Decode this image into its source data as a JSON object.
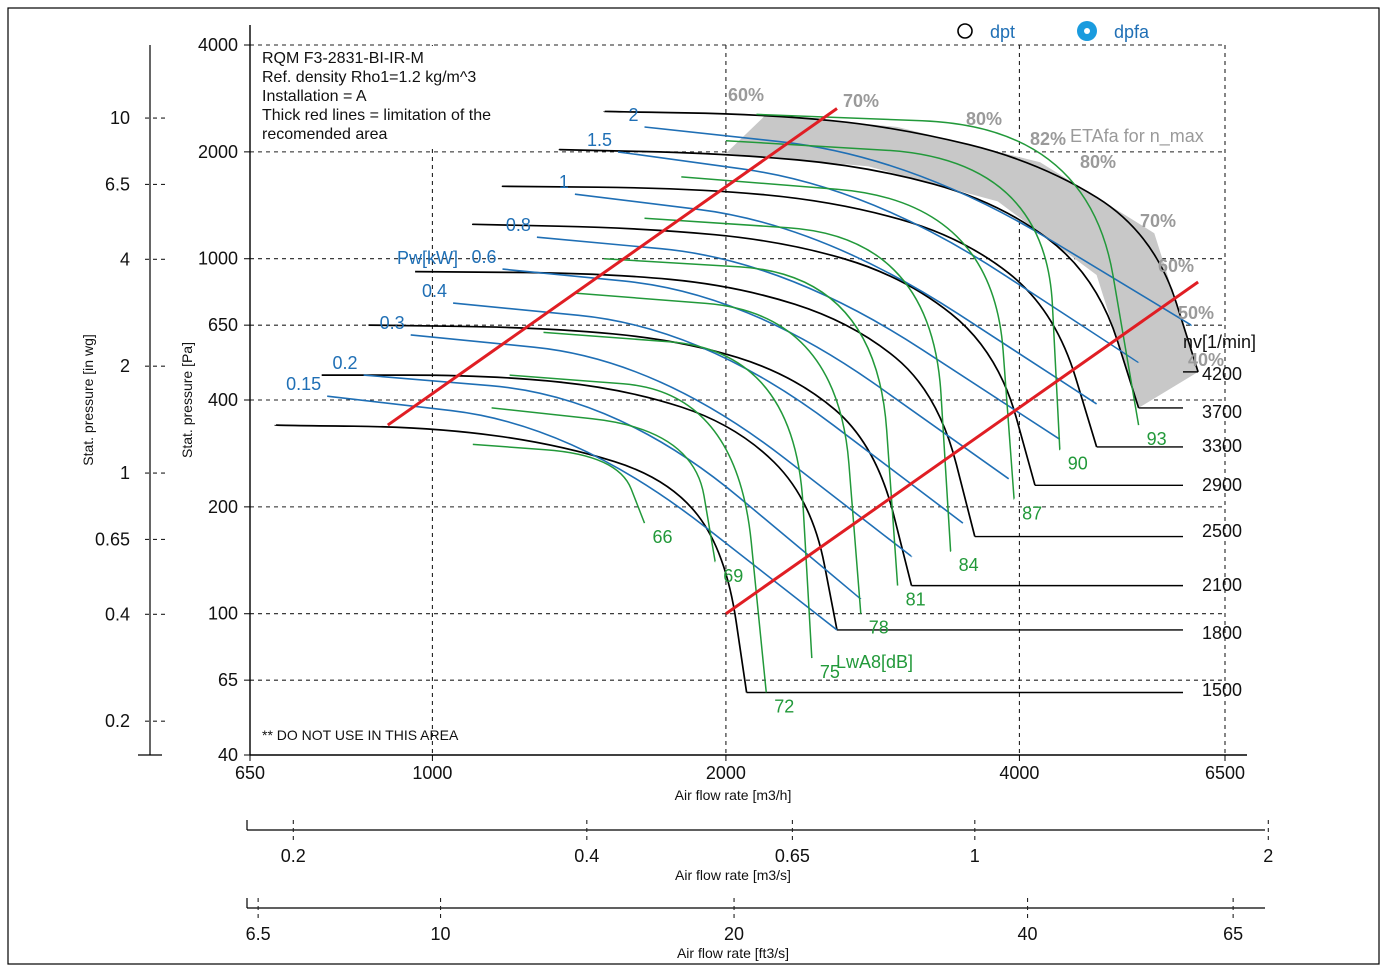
{
  "header": {
    "legend": [
      {
        "label": "dpt",
        "marker": "open-circle",
        "color": "#000000"
      },
      {
        "label": "dpfa",
        "marker": "filled-dot",
        "color": "#1a9bde"
      }
    ]
  },
  "notes": {
    "model": "RQM F3-2831-BI-IR-M",
    "density": "Ref. density Rho1=1.2 kg/m^3",
    "installation": "Installation = A",
    "red_lines_1": "Thick red lines = limitation of the",
    "red_lines_2": "recomended area",
    "no_use": "** DO NOT USE IN THIS AREA"
  },
  "chart_data": {
    "type": "line",
    "title": "",
    "x_axes": [
      {
        "label": "Air flow rate [m3/h]",
        "scale": "log",
        "range": [
          650,
          6500
        ],
        "ticks": [
          "650",
          "1000",
          "2000",
          "4000",
          "6500"
        ]
      },
      {
        "label": "Air flow rate [m3/s]",
        "scale": "log",
        "ticks": [
          "0.2",
          "0.4",
          "0.65",
          "1",
          "2"
        ]
      },
      {
        "label": "Air flow rate [ft3/s]",
        "scale": "log",
        "ticks": [
          "6.5",
          "10",
          "20",
          "40",
          "65"
        ]
      }
    ],
    "y_axes": [
      {
        "label": "Stat. pressure [Pa]",
        "scale": "log",
        "range": [
          40,
          4000
        ],
        "ticks": [
          "4000",
          "2000",
          "1000",
          "650",
          "400",
          "200",
          "100",
          "65",
          "40"
        ]
      },
      {
        "label": "Stat. pressure [in wg]",
        "scale": "log",
        "ticks": [
          "10",
          "6.5",
          "4",
          "2",
          "1",
          "0.65",
          "0.4",
          "0.2"
        ]
      }
    ],
    "speed_title": "nv[1/min]",
    "speed_series": [
      {
        "name": "4200",
        "x": [
          6100,
          5500,
          4200,
          3000,
          2200,
          1500
        ],
        "y": [
          480,
          1180,
          1870,
          2350,
          2550,
          2600
        ]
      },
      {
        "name": "3700",
        "x": [
          5300,
          4800,
          3800,
          2800,
          2000,
          1350
        ],
        "y": [
          380,
          900,
          1450,
          1820,
          1980,
          2030
        ]
      },
      {
        "name": "3300",
        "x": [
          4800,
          4350,
          3500,
          2600,
          1850,
          1180
        ],
        "y": [
          295,
          720,
          1150,
          1450,
          1580,
          1600
        ]
      },
      {
        "name": "2900",
        "x": [
          4150,
          3800,
          3050,
          2300,
          1650,
          1100
        ],
        "y": [
          230,
          550,
          890,
          1120,
          1220,
          1250
        ]
      },
      {
        "name": "2500",
        "x": [
          3600,
          3300,
          2700,
          2050,
          1500,
          960
        ],
        "y": [
          165,
          420,
          660,
          840,
          910,
          920
        ]
      },
      {
        "name": "2100",
        "x": [
          3100,
          2850,
          2350,
          1800,
          1300,
          860
        ],
        "y": [
          120,
          300,
          470,
          590,
          640,
          650
        ]
      },
      {
        "name": "1800",
        "x": [
          2600,
          2450,
          2050,
          1580,
          1150,
          770
        ],
        "y": [
          90,
          210,
          340,
          430,
          470,
          470
        ]
      },
      {
        "name": "1500",
        "x": [
          2100,
          2000,
          1750,
          1350,
          1000,
          690
        ],
        "y": [
          60,
          150,
          240,
          300,
          335,
          340
        ]
      }
    ],
    "red_limit_lines": [
      {
        "x": [
          900,
          2600
        ],
        "y": [
          340,
          2650
        ]
      },
      {
        "x": [
          2000,
          6100
        ],
        "y": [
          100,
          860
        ]
      }
    ],
    "shaded_region_corners": {
      "x": [
        2200,
        4150,
        6100,
        5300,
        4800,
        3000,
        1700
      ],
      "y": [
        2600,
        2050,
        480,
        330,
        1400,
        2200,
        2050
      ]
    },
    "power_lines_label": "Pw[kW]",
    "power_lines": [
      {
        "name": "2",
        "x": [
          1650,
          3100,
          6000
        ],
        "y": [
          2350,
          1950,
          650
        ]
      },
      {
        "name": "1.5",
        "x": [
          1550,
          2800,
          5300
        ],
        "y": [
          2000,
          1600,
          510
        ]
      },
      {
        "name": "1",
        "x": [
          1400,
          2500,
          4800
        ],
        "y": [
          1520,
          1250,
          390
        ]
      },
      {
        "name": "0.8",
        "x": [
          1280,
          2300,
          4400
        ],
        "y": [
          1150,
          990,
          310
        ]
      },
      {
        "name": "0.6",
        "x": [
          1180,
          2100,
          3900
        ],
        "y": [
          935,
          800,
          240
        ]
      },
      {
        "name": "0.4",
        "x": [
          1050,
          1900,
          3500
        ],
        "y": [
          750,
          640,
          180
        ]
      },
      {
        "name": "0.3",
        "x": [
          950,
          1700,
          3100
        ],
        "y": [
          610,
          520,
          145
        ]
      },
      {
        "name": "0.2",
        "x": [
          850,
          1550,
          2750
        ],
        "y": [
          470,
          410,
          110
        ]
      },
      {
        "name": "0.15",
        "x": [
          780,
          1400,
          2600
        ],
        "y": [
          410,
          340,
          90
        ]
      }
    ],
    "noise_lines_label": "LwA8[dB]",
    "noise_lines": [
      {
        "name": "66",
        "x": [
          1100,
          1550,
          1650
        ],
        "y": [
          300,
          280,
          180
        ]
      },
      {
        "name": "69",
        "x": [
          1150,
          1850,
          1950
        ],
        "y": [
          380,
          330,
          140
        ]
      },
      {
        "name": "72",
        "x": [
          1200,
          2050,
          2200
        ],
        "y": [
          470,
          420,
          60
        ]
      },
      {
        "name": "75",
        "x": [
          1300,
          2350,
          2450
        ],
        "y": [
          620,
          550,
          75
        ]
      },
      {
        "name": "78",
        "x": [
          1400,
          2600,
          2750
        ],
        "y": [
          800,
          700,
          100
        ]
      },
      {
        "name": "81",
        "x": [
          1500,
          2850,
          3000
        ],
        "y": [
          1000,
          900,
          120
        ]
      },
      {
        "name": "84",
        "x": [
          1650,
          3250,
          3400
        ],
        "y": [
          1300,
          1150,
          150
        ]
      },
      {
        "name": "87",
        "x": [
          1800,
          3750,
          3950
        ],
        "y": [
          1700,
          1450,
          210
        ]
      },
      {
        "name": "90",
        "x": [
          2000,
          4250,
          4400
        ],
        "y": [
          2150,
          1900,
          290
        ]
      },
      {
        "name": "93",
        "x": [
          2150,
          4700,
          5300
        ],
        "y": [
          2550,
          2350,
          340
        ]
      }
    ],
    "efficiency_labels": [
      "60%",
      "70%",
      "80%",
      "82%",
      "80%",
      "70%",
      "60%",
      "50%",
      "40%"
    ],
    "efficiency_title": "ETAfa for n_max",
    "grid": true
  }
}
